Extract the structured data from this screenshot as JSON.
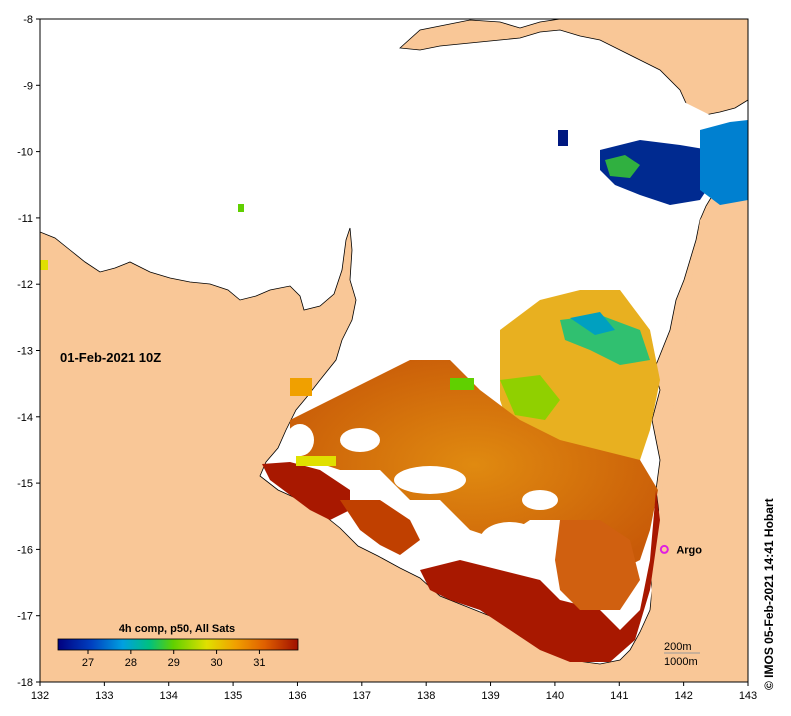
{
  "map": {
    "date_label": "01-Feb-2021 10Z",
    "credit": "© IMOS 05-Feb-2021 14:41 Hobart",
    "x_ticks": [
      "132",
      "133",
      "134",
      "135",
      "136",
      "137",
      "138",
      "139",
      "140",
      "141",
      "142",
      "143"
    ],
    "y_ticks": [
      "-8",
      "-9",
      "-10",
      "-11",
      "-12",
      "-13",
      "-14",
      "-15",
      "-16",
      "-17",
      "-18"
    ],
    "lon_range": [
      132,
      143
    ],
    "lat_range": [
      -18,
      -8
    ],
    "argo_label": "Argo",
    "argo_position": {
      "lon": 141.7,
      "lat": -16.0
    },
    "isobath_labels": [
      "200m",
      "1000m"
    ],
    "colors": {
      "land": "#f9c797",
      "no_data": "#ffffff",
      "argo_marker": "#e020e0"
    }
  },
  "colorbar": {
    "title": "4h comp, p50, All Sats",
    "tick_labels": [
      "27",
      "28",
      "29",
      "30",
      "31"
    ],
    "tick_values": [
      27,
      28,
      29,
      30,
      31
    ],
    "range": [
      26.3,
      31.9
    ],
    "colors": [
      "#000080",
      "#0040c0",
      "#00a0e0",
      "#00c080",
      "#60d000",
      "#e0e000",
      "#f0a000",
      "#e06000",
      "#a01000"
    ]
  }
}
